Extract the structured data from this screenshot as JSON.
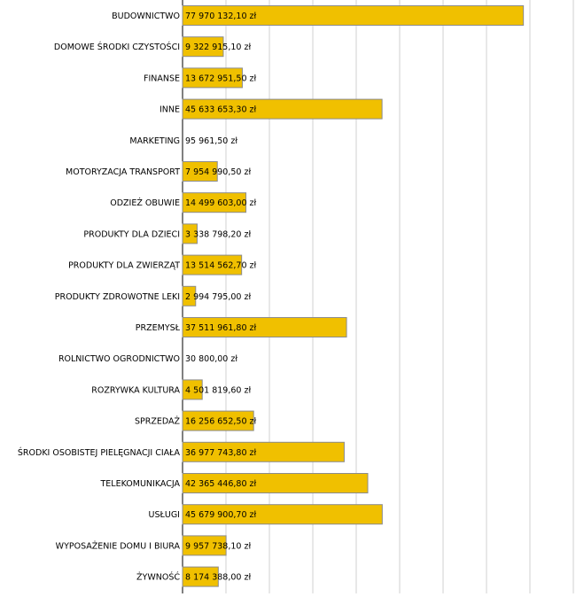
{
  "chart_data": {
    "type": "bar",
    "orientation": "horizontal",
    "title": "",
    "xlabel": "",
    "ylabel": "",
    "xlim": [
      0,
      90000000
    ],
    "grid": true,
    "legend": "none",
    "bar_color": "#f0c000",
    "bar_edge_color": "#8c8c8c",
    "value_unit": "zł",
    "categories": [
      "BUDOWNICTWO",
      "DOMOWE ŚRODKI CZYSTOŚCI",
      "FINANSE",
      "INNE",
      "MARKETING",
      "MOTORYZACJA TRANSPORT",
      "ODZIEŻ OBUWIE",
      "PRODUKTY DLA DZIECI",
      "PRODUKTY DLA ZWIERZĄT",
      "PRODUKTY ZDROWOTNE LEKI",
      "PRZEMYSŁ",
      "ROLNICTWO OGRODNICTWO",
      "ROZRYWKA KULTURA",
      "SPRZEDAŻ",
      "ŚRODKI OSOBISTEJ PIELĘGNACJI CIAŁA",
      "TELEKOMUNIKACJA",
      "USŁUGI",
      "WYPOSAŻENIE DOMU I BIURA",
      "ŻYWNOŚĆ"
    ],
    "values": [
      77970132.1,
      9322915.1,
      13672951.5,
      45633653.3,
      95961.5,
      7954990.5,
      14499603.0,
      3338798.2,
      13514562.7,
      2994795.0,
      37511961.8,
      30800.0,
      4501819.6,
      16256652.5,
      36977743.8,
      42365446.8,
      45679900.7,
      9957738.1,
      8174388.0
    ],
    "value_labels": [
      "77 970 132,10 zł",
      "9 322 915,10 zł",
      "13 672 951,50 zł",
      "45 633 653,30 zł",
      "95 961,50 zł",
      "7 954 990,50 zł",
      "14 499 603,00 zł",
      "3 338 798,20 zł",
      "13 514 562,70 zł",
      "2 994 795,00 zł",
      "37 511 961,80 zł",
      "30 800,00 zł",
      "4 501 819,60 zł",
      "16 256 652,50 zł",
      "36 977 743,80 zł",
      "42 365 446,80 zł",
      "45 679 900,70 zł",
      "9 957 738,10 zł",
      "8 174 388,00 zł"
    ]
  }
}
